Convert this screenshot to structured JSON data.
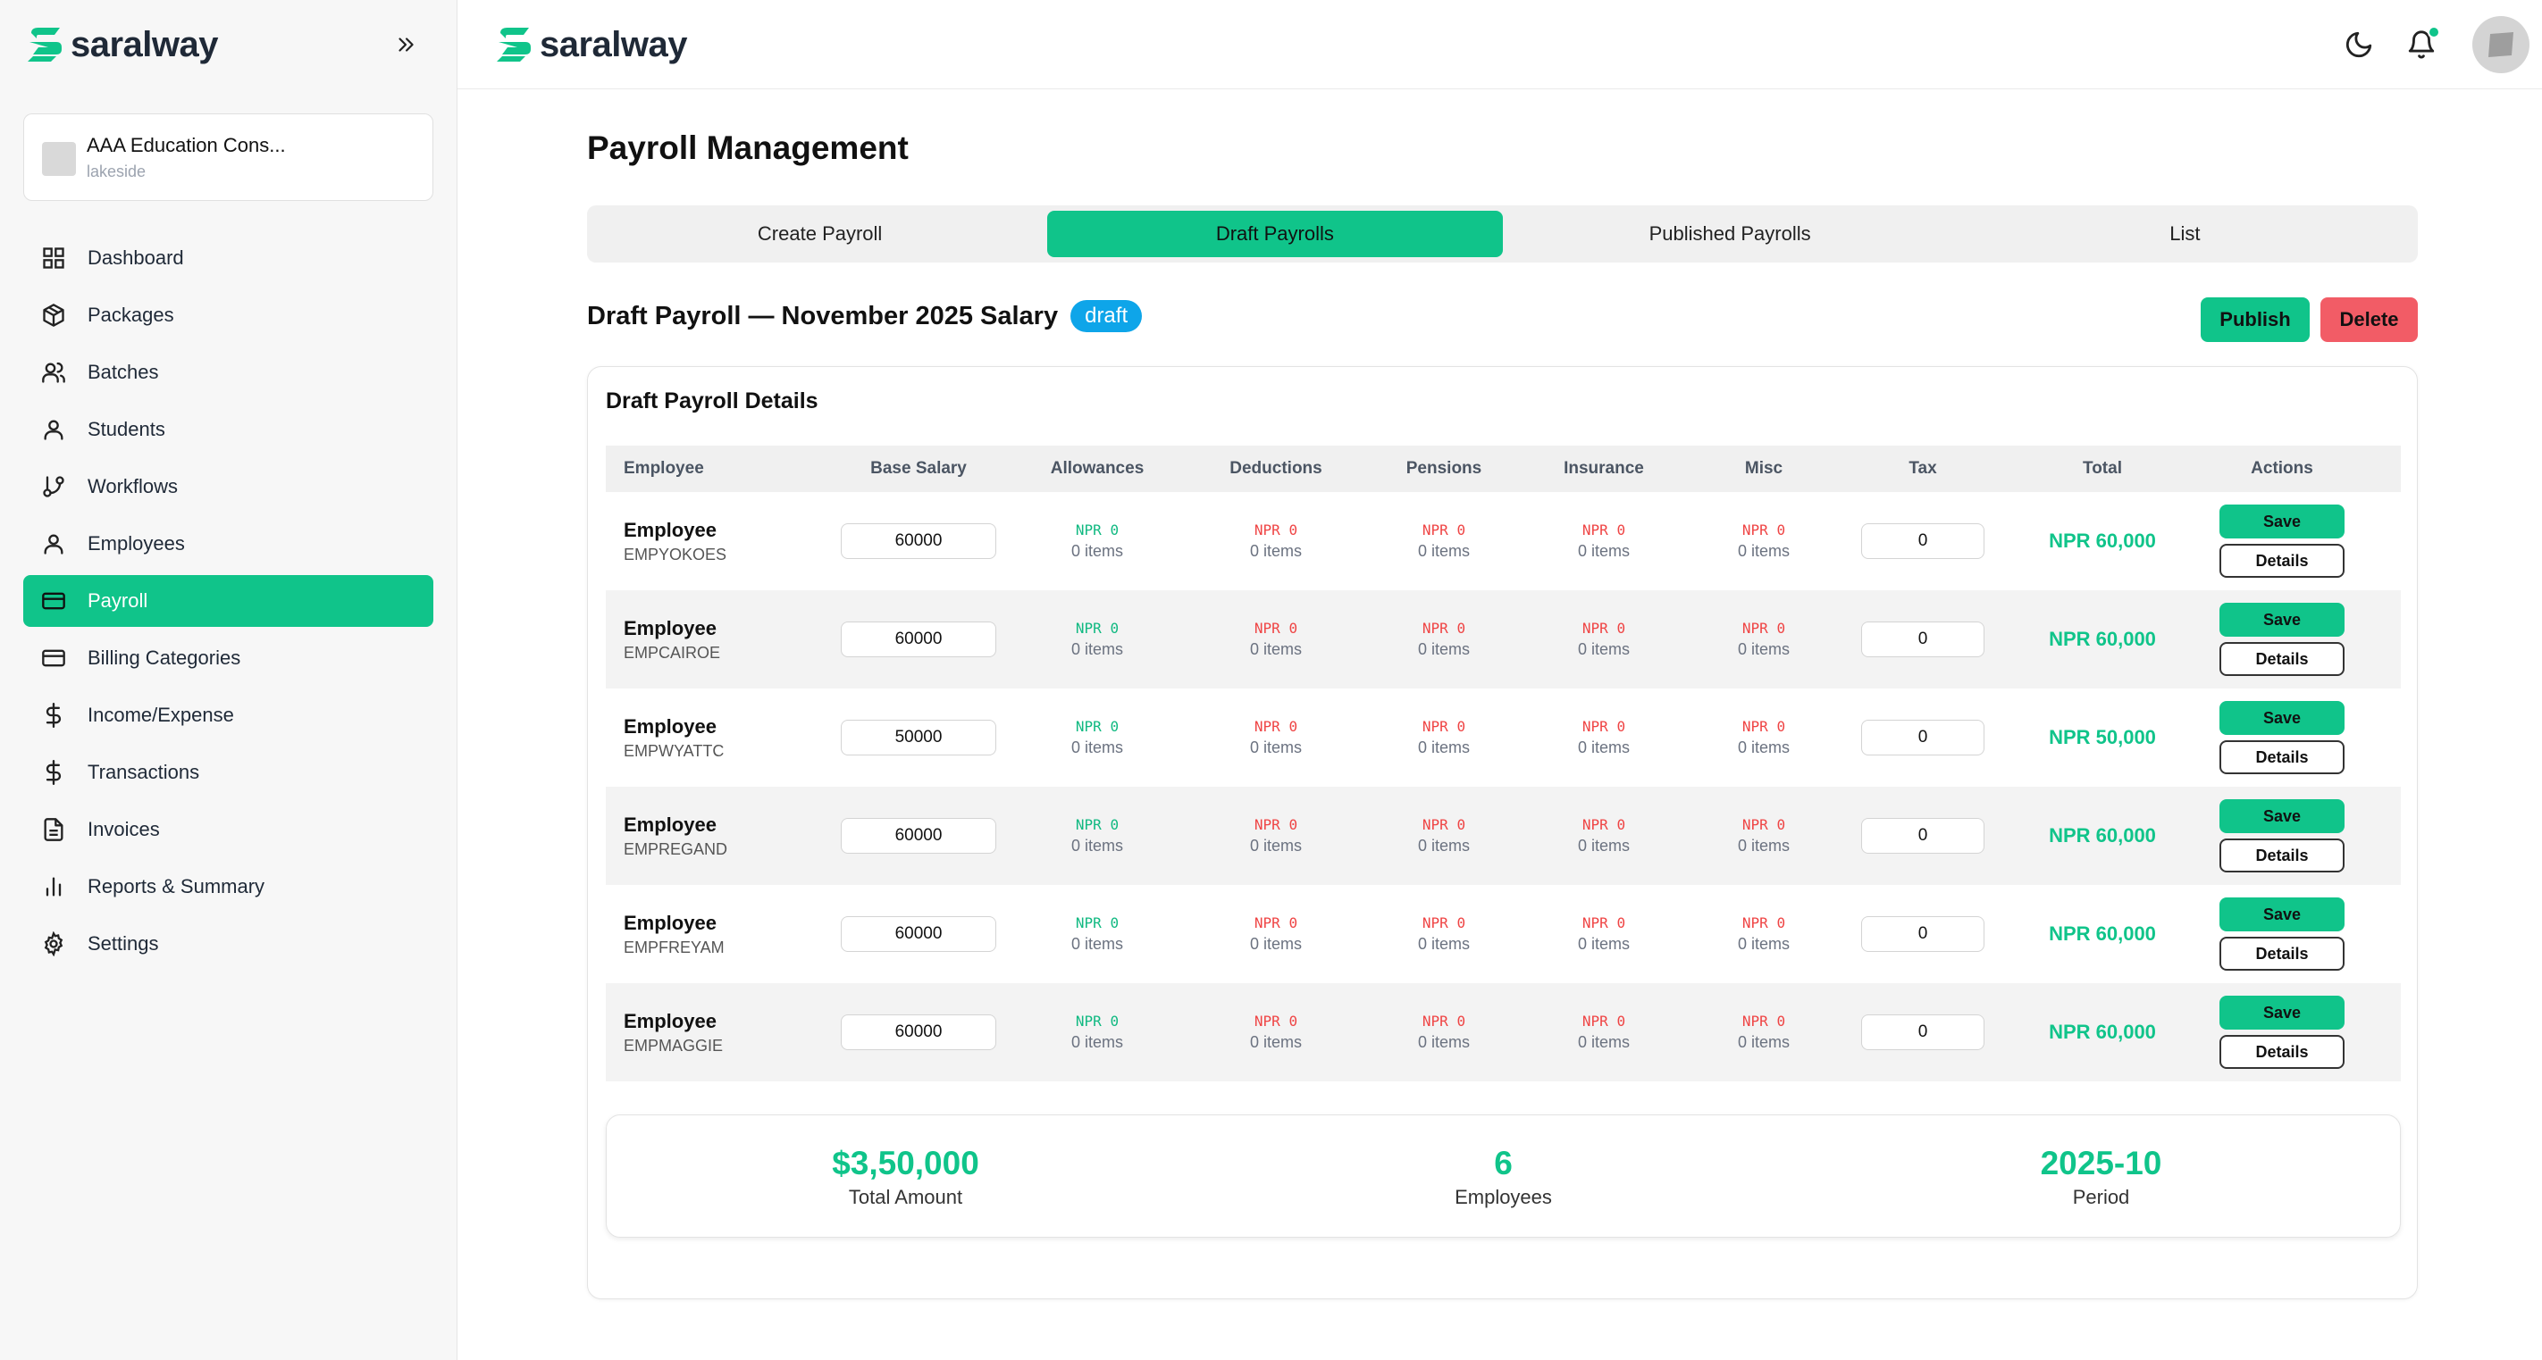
{
  "brand": {
    "name": "saralway"
  },
  "org": {
    "name": "AAA Education Cons...",
    "branch": "lakeside"
  },
  "sidebar": {
    "items": [
      {
        "label": "Dashboard",
        "icon": "grid-icon"
      },
      {
        "label": "Packages",
        "icon": "package-icon"
      },
      {
        "label": "Batches",
        "icon": "users-icon"
      },
      {
        "label": "Students",
        "icon": "user-icon"
      },
      {
        "label": "Workflows",
        "icon": "git-branch-icon"
      },
      {
        "label": "Employees",
        "icon": "user-icon"
      },
      {
        "label": "Payroll",
        "icon": "credit-card-icon",
        "active": true
      },
      {
        "label": "Billing Categories",
        "icon": "credit-card-icon"
      },
      {
        "label": "Income/Expense",
        "icon": "dollar-icon"
      },
      {
        "label": "Transactions",
        "icon": "dollar-icon"
      },
      {
        "label": "Invoices",
        "icon": "document-icon"
      },
      {
        "label": "Reports & Summary",
        "icon": "bar-chart-icon"
      },
      {
        "label": "Settings",
        "icon": "gear-icon"
      }
    ]
  },
  "page": {
    "title": "Payroll Management",
    "tabs": [
      {
        "label": "Create Payroll"
      },
      {
        "label": "Draft Payrolls",
        "active": true
      },
      {
        "label": "Published Payrolls"
      },
      {
        "label": "List"
      }
    ],
    "section_title": "Draft Payroll — November 2025 Salary",
    "status_badge": "draft",
    "publish_label": "Publish",
    "delete_label": "Delete"
  },
  "table": {
    "card_title": "Draft Payroll Details",
    "columns": [
      "Employee",
      "Base Salary",
      "Allowances",
      "Deductions",
      "Pensions",
      "Insurance",
      "Misc",
      "Tax",
      "Total",
      "Actions"
    ],
    "rows": [
      {
        "name": "Employee",
        "code": "EMPYOKOES",
        "base": "60000",
        "allowances": "NPR 0",
        "allowances_items": "0 items",
        "deductions": "NPR 0",
        "deductions_items": "0 items",
        "pensions": "NPR 0",
        "pensions_items": "0 items",
        "insurance": "NPR 0",
        "insurance_items": "0 items",
        "misc": "NPR 0",
        "misc_items": "0 items",
        "tax": "0",
        "total": "NPR 60,000",
        "save": "Save",
        "details": "Details"
      },
      {
        "name": "Employee",
        "code": "EMPCAIROE",
        "base": "60000",
        "allowances": "NPR 0",
        "allowances_items": "0 items",
        "deductions": "NPR 0",
        "deductions_items": "0 items",
        "pensions": "NPR 0",
        "pensions_items": "0 items",
        "insurance": "NPR 0",
        "insurance_items": "0 items",
        "misc": "NPR 0",
        "misc_items": "0 items",
        "tax": "0",
        "total": "NPR 60,000",
        "save": "Save",
        "details": "Details"
      },
      {
        "name": "Employee",
        "code": "EMPWYATTC",
        "base": "50000",
        "allowances": "NPR 0",
        "allowances_items": "0 items",
        "deductions": "NPR 0",
        "deductions_items": "0 items",
        "pensions": "NPR 0",
        "pensions_items": "0 items",
        "insurance": "NPR 0",
        "insurance_items": "0 items",
        "misc": "NPR 0",
        "misc_items": "0 items",
        "tax": "0",
        "total": "NPR 50,000",
        "save": "Save",
        "details": "Details"
      },
      {
        "name": "Employee",
        "code": "EMPREGAND",
        "base": "60000",
        "allowances": "NPR 0",
        "allowances_items": "0 items",
        "deductions": "NPR 0",
        "deductions_items": "0 items",
        "pensions": "NPR 0",
        "pensions_items": "0 items",
        "insurance": "NPR 0",
        "insurance_items": "0 items",
        "misc": "NPR 0",
        "misc_items": "0 items",
        "tax": "0",
        "total": "NPR 60,000",
        "save": "Save",
        "details": "Details"
      },
      {
        "name": "Employee",
        "code": "EMPFREYAM",
        "base": "60000",
        "allowances": "NPR 0",
        "allowances_items": "0 items",
        "deductions": "NPR 0",
        "deductions_items": "0 items",
        "pensions": "NPR 0",
        "pensions_items": "0 items",
        "insurance": "NPR 0",
        "insurance_items": "0 items",
        "misc": "NPR 0",
        "misc_items": "0 items",
        "tax": "0",
        "total": "NPR 60,000",
        "save": "Save",
        "details": "Details"
      },
      {
        "name": "Employee",
        "code": "EMPMAGGIE",
        "base": "60000",
        "allowances": "NPR 0",
        "allowances_items": "0 items",
        "deductions": "NPR 0",
        "deductions_items": "0 items",
        "pensions": "NPR 0",
        "pensions_items": "0 items",
        "insurance": "NPR 0",
        "insurance_items": "0 items",
        "misc": "NPR 0",
        "misc_items": "0 items",
        "tax": "0",
        "total": "NPR 60,000",
        "save": "Save",
        "details": "Details"
      }
    ]
  },
  "summary": {
    "total_amount": "$3,50,000",
    "total_amount_label": "Total Amount",
    "employees": "6",
    "employees_label": "Employees",
    "period": "2025-10",
    "period_label": "Period"
  },
  "colors": {
    "accent": "#10c48a",
    "danger": "#f25c66",
    "badge": "#0ea5e9",
    "negative": "#ef4444"
  }
}
